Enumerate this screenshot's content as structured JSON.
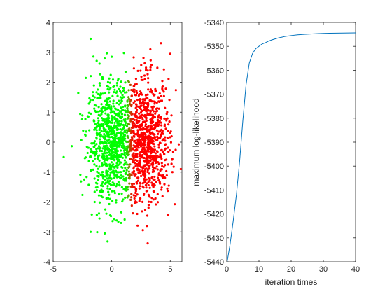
{
  "chart_data": [
    {
      "type": "scatter",
      "title": "",
      "xlabel": "",
      "ylabel": "",
      "xlim": [
        -5,
        6
      ],
      "ylim": [
        -4,
        4
      ],
      "xticks": [
        "-5",
        "0",
        "5"
      ],
      "yticks": [
        "-4",
        "-3",
        "-2",
        "-1",
        "0",
        "1",
        "2",
        "3",
        "4"
      ],
      "grid": false,
      "legend": "none",
      "clusters": [
        {
          "color_low": "#00ff00",
          "color_high": "#ff0000",
          "center": [
            0,
            0
          ],
          "spread": [
            1.05,
            1.0
          ],
          "count": 900
        },
        {
          "center": [
            3,
            0
          ],
          "spread": [
            1.0,
            1.0
          ],
          "count": 900
        }
      ],
      "points_visible_outliers": [
        {
          "x": -1.8,
          "y": 3.45
        },
        {
          "x": 0.0,
          "y": 2.85
        },
        {
          "x": 5.0,
          "y": 2.95
        },
        {
          "x": 3.3,
          "y": 3.1
        },
        {
          "x": -4.1,
          "y": -0.5
        },
        {
          "x": -1.8,
          "y": -3.0
        },
        {
          "x": -0.6,
          "y": -3.05
        },
        {
          "x": 0.8,
          "y": -2.7
        },
        {
          "x": 3.0,
          "y": -2.8
        },
        {
          "x": 5.9,
          "y": -0.9
        }
      ]
    },
    {
      "type": "line",
      "title": "",
      "xlabel": "iteration times",
      "ylabel": "maximum log-likelihood",
      "xlim": [
        0,
        40
      ],
      "ylim": [
        -5440,
        -5340
      ],
      "xticks": [
        "0",
        "10",
        "20",
        "30",
        "40"
      ],
      "yticks": [
        "-5440",
        "-5430",
        "-5420",
        "-5410",
        "-5400",
        "-5390",
        "-5380",
        "-5370",
        "-5360",
        "-5350",
        "-5340"
      ],
      "grid": false,
      "legend": "none",
      "series": [
        {
          "color": "#0072bd",
          "x": [
            0,
            1,
            2,
            3,
            4,
            5,
            6,
            7,
            8,
            9,
            10,
            11,
            12,
            13,
            14,
            15,
            16,
            17,
            18,
            19,
            20,
            22,
            24,
            26,
            28,
            30,
            32,
            34,
            36,
            38,
            40
          ],
          "values": [
            -5441,
            -5433,
            -5423,
            -5412,
            -5398,
            -5381,
            -5366,
            -5357,
            -5353,
            -5351,
            -5350,
            -5349,
            -5348.5,
            -5347.8,
            -5347.3,
            -5346.9,
            -5346.5,
            -5346.2,
            -5345.9,
            -5345.7,
            -5345.5,
            -5345.2,
            -5345,
            -5344.85,
            -5344.7,
            -5344.6,
            -5344.55,
            -5344.5,
            -5344.45,
            -5344.42,
            -5344.4
          ]
        }
      ]
    }
  ]
}
